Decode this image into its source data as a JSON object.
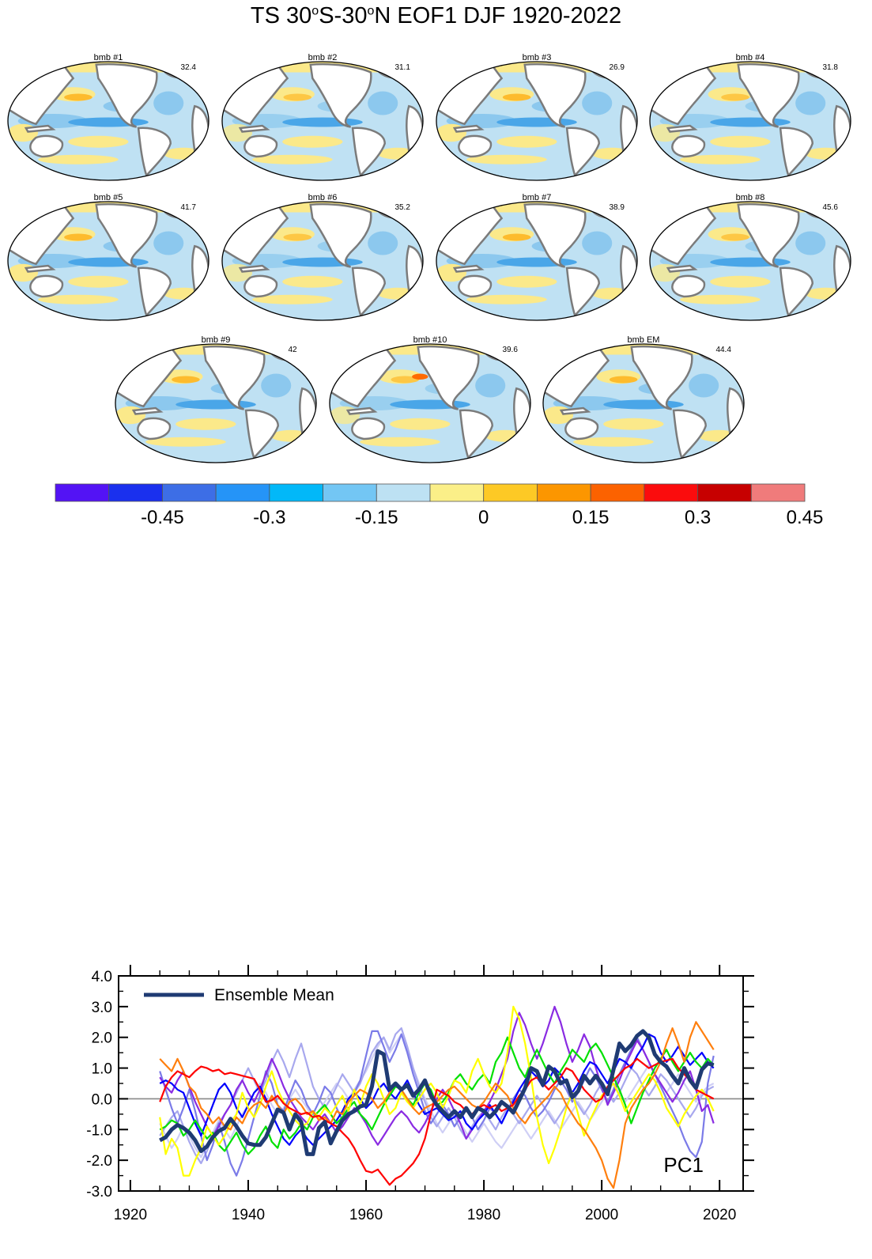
{
  "title": {
    "prefix": "TS 30",
    "sup1": "o",
    "mid": "S-30",
    "sup2": "o",
    "suffix": "N EOF1 DJF 1920-2022"
  },
  "colors": {
    "ocean_light": "#bfe1f3",
    "ocean_mid": "#8cc8ee",
    "ocean_deep": "#4aa6e8",
    "warm_light": "#fbe98a",
    "warm_mid": "#fdbb2d",
    "warm_deep": "#ff6a00",
    "land": "#ffffff",
    "coast": "#7b7b7b"
  },
  "maps": [
    {
      "label": "bmb #1",
      "value": "32.4"
    },
    {
      "label": "bmb #2",
      "value": "31.1"
    },
    {
      "label": "bmb #3",
      "value": "26.9"
    },
    {
      "label": "bmb #4",
      "value": "31.8"
    },
    {
      "label": "bmb #5",
      "value": "41.7"
    },
    {
      "label": "bmb #6",
      "value": "35.2"
    },
    {
      "label": "bmb #7",
      "value": "38.9"
    },
    {
      "label": "bmb #8",
      "value": "45.6"
    },
    {
      "label": "bmb #9",
      "value": "42"
    },
    {
      "label": "bmb #10",
      "value": "39.6"
    },
    {
      "label": "bmb EM",
      "value": "44.4"
    }
  ],
  "colorbar": {
    "colors": [
      "#5313f5",
      "#1a30ee",
      "#3d6ee6",
      "#2594f7",
      "#02b8f8",
      "#73c6f4",
      "#bde1f3",
      "#fbef88",
      "#fdc925",
      "#fc9600",
      "#fc6200",
      "#fb0c0d",
      "#c70000",
      "#f07b7b"
    ],
    "labels": [
      "-0.45",
      "-0.3",
      "-0.15",
      "0",
      "0.15",
      "0.3",
      "0.45"
    ]
  },
  "chart_data": {
    "type": "line",
    "xlim": [
      1918,
      2024
    ],
    "ylim": [
      -3.0,
      4.0
    ],
    "xticks": [
      "1920",
      "1940",
      "1960",
      "1980",
      "2000",
      "2020"
    ],
    "yticks": [
      "4.0",
      "3.0",
      "2.0",
      "1.0",
      "0.0",
      "-1.0",
      "-2.0",
      "-3.0"
    ],
    "annotation": "PC1",
    "legend": {
      "label": "Ensemble Mean",
      "placement": "top-left"
    },
    "x_start": 1925,
    "x_step": 1,
    "series": [
      {
        "name": "Ensemble Mean",
        "color": "#1f3b73",
        "width": 5,
        "values": [
          -1.35,
          -1.25,
          -1.0,
          -0.85,
          -0.95,
          -1.1,
          -1.35,
          -1.7,
          -1.55,
          -1.25,
          -1.05,
          -0.95,
          -0.65,
          -0.9,
          -1.2,
          -1.45,
          -1.5,
          -1.5,
          -1.25,
          -0.8,
          -0.35,
          -0.45,
          -1.0,
          -0.5,
          -0.75,
          -1.8,
          -1.8,
          -0.95,
          -0.75,
          -1.45,
          -1.05,
          -0.7,
          -0.5,
          -0.4,
          -0.25,
          -0.2,
          0.4,
          1.55,
          1.45,
          0.3,
          0.5,
          0.3,
          0.45,
          0.1,
          0.3,
          0.6,
          0.1,
          -0.2,
          -0.4,
          -0.6,
          -0.4,
          -0.6,
          -0.3,
          -0.6,
          -0.3,
          -0.4,
          -0.6,
          -0.4,
          -0.1,
          -0.25,
          -0.45,
          -0.05,
          0.35,
          1.0,
          0.9,
          0.45,
          1.05,
          0.9,
          0.5,
          0.6,
          0.05,
          0.25,
          0.75,
          0.5,
          0.75,
          0.5,
          0.15,
          0.95,
          1.8,
          1.55,
          1.75,
          2.05,
          2.2,
          2.0,
          1.45,
          1.2,
          1.05,
          0.75,
          0.5,
          1.0,
          0.6,
          0.35,
          0.95,
          1.15,
          1.1
        ]
      },
      {
        "name": "",
        "color": "#ff0000",
        "width": 2.2,
        "values": [
          -0.1,
          0.4,
          0.7,
          0.9,
          0.8,
          0.7,
          0.9,
          1.05,
          1.0,
          0.9,
          0.95,
          0.8,
          0.85,
          0.8,
          0.75,
          0.7,
          0.65,
          0.3,
          -0.1,
          -0.05,
          0.1,
          -0.15,
          -0.3,
          -0.4,
          -0.5,
          -0.45,
          -0.6,
          -0.55,
          -0.7,
          -0.8,
          -0.9,
          -1.1,
          -1.3,
          -1.6,
          -2.0,
          -2.35,
          -2.4,
          -2.3,
          -2.55,
          -2.8,
          -2.6,
          -2.5,
          -2.3,
          -2.1,
          -1.8,
          -1.3,
          -0.5,
          0.3,
          0.2,
          0.1,
          -0.1,
          -0.2,
          -0.4,
          -0.5,
          -0.3,
          -0.2,
          -0.3,
          -0.2,
          -0.4,
          -0.3,
          -0.2,
          0.1,
          0.3,
          0.6,
          0.7,
          0.5,
          0.3,
          0.5,
          0.7,
          1.0,
          0.9,
          0.6,
          0.3,
          0.1,
          -0.1,
          0.0,
          0.4,
          0.6,
          0.8,
          1.0,
          1.1,
          1.3,
          1.15,
          1.0,
          1.1,
          1.2,
          1.25,
          1.3,
          1.0,
          0.8,
          0.6,
          0.3,
          0.2,
          0.1,
          0.0
        ]
      },
      {
        "name": "",
        "color": "#ff7f0e",
        "width": 2.2,
        "values": [
          1.3,
          1.1,
          0.9,
          1.3,
          0.9,
          0.4,
          0.2,
          -0.3,
          -0.5,
          -0.8,
          -0.6,
          -0.9,
          -1.0,
          -0.6,
          -0.8,
          -0.4,
          -0.2,
          -0.1,
          -0.3,
          0.1,
          -0.2,
          -0.5,
          -0.1,
          0.0,
          -0.2,
          -0.5,
          -0.4,
          -0.7,
          -0.6,
          -0.8,
          -0.4,
          -0.5,
          -0.1,
          0.1,
          0.3,
          0.2,
          0.0,
          -0.3,
          -0.1,
          0.2,
          0.5,
          0.3,
          0.0,
          -0.3,
          -0.5,
          -0.3,
          -0.2,
          -0.1,
          0.1,
          0.3,
          0.4,
          0.2,
          0.0,
          -0.2,
          -0.3,
          -0.1,
          0.2,
          0.5,
          0.3,
          0.1,
          -0.3,
          -0.6,
          -0.8,
          -0.5,
          -0.3,
          -0.1,
          0.1,
          0.4,
          0.2,
          -0.2,
          -0.5,
          -0.8,
          -1.0,
          -1.3,
          -1.6,
          -2.0,
          -2.6,
          -2.9,
          -2.0,
          -0.8,
          -0.3,
          0.0,
          0.3,
          0.5,
          0.8,
          1.2,
          1.8,
          2.3,
          1.8,
          1.2,
          2.0,
          2.5,
          2.2,
          1.9,
          1.6
        ]
      },
      {
        "name": "",
        "color": "#ffff00",
        "width": 2.2,
        "values": [
          -0.6,
          -1.8,
          -1.3,
          -1.6,
          -2.5,
          -2.5,
          -2.0,
          -1.6,
          -0.9,
          -1.2,
          -1.5,
          -1.2,
          -0.8,
          -0.5,
          0.2,
          -0.3,
          -0.6,
          -0.2,
          0.4,
          0.9,
          0.3,
          -0.1,
          -0.4,
          -0.7,
          -0.9,
          -0.8,
          -0.4,
          -0.6,
          -0.3,
          -0.5,
          -0.2,
          0.1,
          -0.4,
          0.3,
          -0.2,
          0.4,
          0.8,
          0.5,
          0.0,
          -0.5,
          -0.3,
          0.2,
          -0.1,
          -0.3,
          0.0,
          0.3,
          0.5,
          0.2,
          -0.3,
          0.1,
          0.6,
          0.5,
          0.2,
          0.9,
          1.3,
          0.8,
          0.4,
          0.2,
          0.5,
          1.5,
          3.0,
          2.6,
          1.8,
          0.7,
          -0.6,
          -1.5,
          -2.1,
          -1.6,
          -1.0,
          -0.3,
          0.2,
          -0.5,
          -1.2,
          -0.7,
          -0.3,
          0.1,
          0.3,
          0.5,
          0.1,
          -0.4,
          -0.1,
          0.2,
          0.5,
          0.8,
          0.6,
          0.2,
          -0.3,
          -0.6,
          -0.9,
          -0.5,
          -0.2,
          0.1,
          0.3,
          0.0,
          -0.4
        ]
      },
      {
        "name": "",
        "color": "#00e000",
        "width": 2.2,
        "values": [
          -1.0,
          -0.9,
          -0.7,
          -0.8,
          -1.2,
          -1.0,
          -0.7,
          -1.0,
          -1.3,
          -1.1,
          -1.5,
          -1.7,
          -1.4,
          -1.1,
          -1.5,
          -1.8,
          -1.6,
          -1.2,
          -0.9,
          -1.4,
          -1.6,
          -1.0,
          -1.3,
          -1.1,
          -0.8,
          -1.0,
          -0.6,
          -0.4,
          -0.2,
          -0.5,
          -0.8,
          -0.6,
          -0.3,
          -0.1,
          -0.5,
          -0.7,
          -1.0,
          -0.6,
          -0.2,
          0.1,
          0.4,
          0.3,
          0.0,
          -0.2,
          0.2,
          0.5,
          0.3,
          -0.2,
          -0.1,
          0.2,
          0.6,
          0.8,
          0.5,
          0.3,
          0.6,
          0.8,
          0.5,
          1.2,
          1.5,
          2.0,
          1.5,
          1.0,
          0.7,
          1.2,
          1.6,
          1.2,
          0.8,
          0.5,
          0.9,
          1.2,
          1.6,
          1.4,
          1.2,
          1.6,
          1.8,
          1.5,
          1.1,
          0.7,
          0.3,
          -0.2,
          -0.8,
          -0.3,
          0.2,
          0.6,
          1.0,
          1.3,
          1.6,
          1.2,
          0.9,
          1.2,
          1.5,
          1.2,
          1.0,
          1.3,
          1.1
        ]
      },
      {
        "name": "",
        "color": "#0000ff",
        "width": 2.2,
        "values": [
          0.5,
          0.6,
          0.5,
          0.3,
          0.2,
          -0.3,
          -0.8,
          -1.2,
          -0.7,
          -0.2,
          0.3,
          0.5,
          0.2,
          -0.3,
          -0.6,
          -0.2,
          0.2,
          0.4,
          0.0,
          -0.5,
          -0.9,
          -1.3,
          -1.5,
          -1.2,
          -1.0,
          -1.3,
          -1.5,
          -1.3,
          -1.1,
          -0.9,
          -0.7,
          -0.4,
          0.0,
          0.2,
          0.0,
          -0.3,
          -0.1,
          0.3,
          0.5,
          0.2,
          0.0,
          0.3,
          0.6,
          0.2,
          -0.2,
          -0.5,
          -0.4,
          -0.3,
          -0.5,
          -0.7,
          -0.6,
          -0.4,
          -0.8,
          -1.0,
          -0.7,
          -0.5,
          -0.2,
          -0.5,
          -0.8,
          -0.4,
          -0.1,
          0.3,
          0.6,
          0.9,
          0.7,
          0.4,
          0.6,
          1.0,
          0.8,
          0.5,
          0.2,
          0.5,
          0.9,
          1.2,
          1.1,
          0.8,
          0.5,
          0.9,
          1.3,
          1.2,
          1.0,
          1.4,
          1.7,
          2.1,
          2.0,
          1.5,
          1.2,
          1.4,
          1.7,
          1.4,
          1.1,
          1.3,
          1.5,
          1.2,
          1.0
        ]
      },
      {
        "name": "",
        "color": "#8a2be2",
        "width": 2.2,
        "values": [
          0.7,
          0.4,
          0.2,
          0.6,
          0.9,
          0.4,
          -0.1,
          -0.5,
          -0.9,
          -1.2,
          -0.9,
          -0.5,
          -0.2,
          0.3,
          0.6,
          0.2,
          -0.1,
          0.3,
          0.8,
          1.3,
          0.9,
          0.4,
          0.0,
          -0.3,
          -0.6,
          -0.8,
          -1.0,
          -0.7,
          -0.5,
          -0.8,
          -1.1,
          -0.9,
          -0.6,
          -0.3,
          -0.5,
          -0.8,
          -1.2,
          -1.5,
          -1.2,
          -0.9,
          -0.6,
          -0.4,
          -0.6,
          -0.9,
          -1.1,
          -0.8,
          -0.4,
          0.0,
          0.3,
          0.0,
          -0.4,
          -0.8,
          -1.3,
          -1.0,
          -0.7,
          -0.4,
          -0.1,
          0.3,
          0.8,
          1.3,
          2.2,
          2.8,
          2.4,
          1.8,
          1.3,
          1.8,
          2.4,
          3.0,
          2.5,
          1.8,
          1.2,
          1.6,
          2.1,
          1.7,
          1.0,
          0.4,
          -0.2,
          0.2,
          0.6,
          1.1,
          1.5,
          1.9,
          1.6,
          1.2,
          0.8,
          0.5,
          0.2,
          -0.1,
          0.2,
          0.6,
          0.9,
          0.3,
          -0.4,
          -0.2,
          -0.8
        ]
      },
      {
        "name": "",
        "color": "#7b7be8",
        "width": 2.2,
        "values": [
          0.9,
          0.3,
          -0.3,
          -0.8,
          -0.3,
          0.3,
          -0.4,
          -1.2,
          -2.0,
          -1.5,
          -0.8,
          -1.4,
          -2.1,
          -2.5,
          -2.0,
          -1.3,
          -0.6,
          0.1,
          0.9,
          0.5,
          -0.2,
          -0.4,
          0.1,
          0.6,
          0.3,
          -0.2,
          -0.5,
          -0.1,
          0.4,
          0.2,
          -0.3,
          -0.7,
          -0.4,
          0.2,
          0.6,
          1.4,
          2.2,
          2.2,
          1.7,
          1.2,
          1.6,
          2.1,
          1.5,
          0.8,
          0.2,
          -0.4,
          -0.8,
          -0.5,
          -0.2,
          -0.5,
          -0.9,
          -0.6,
          -0.3,
          -0.6,
          -1.0,
          -0.7,
          -0.3,
          -0.5,
          -0.8,
          -0.4,
          0.0,
          0.3,
          0.1,
          -0.3,
          -0.6,
          -0.4,
          -0.1,
          0.3,
          0.6,
          0.3,
          -0.1,
          0.2,
          0.6,
          1.0,
          0.7,
          0.3,
          -0.1,
          0.3,
          0.8,
          1.2,
          1.6,
          2.0,
          1.6,
          1.2,
          0.8,
          0.4,
          0.0,
          -0.4,
          -0.8,
          -1.3,
          -1.7,
          -1.9,
          -1.4,
          0.5,
          1.4
        ]
      },
      {
        "name": "",
        "color": "#a8a8ee",
        "width": 2.2,
        "values": [
          -1.2,
          -0.9,
          -0.6,
          -0.4,
          -0.9,
          -1.4,
          -1.8,
          -2.1,
          -1.7,
          -1.2,
          -0.8,
          -0.5,
          -0.2,
          0.2,
          0.6,
          1.0,
          0.6,
          0.2,
          0.6,
          1.2,
          1.6,
          1.2,
          0.7,
          1.3,
          1.8,
          1.1,
          0.4,
          0.0,
          -0.3,
          0.0,
          0.4,
          0.8,
          0.5,
          0.2,
          0.5,
          1.0,
          1.5,
          1.8,
          2.0,
          1.6,
          2.1,
          2.3,
          1.7,
          1.0,
          0.4,
          -0.1,
          -0.6,
          -0.9,
          -0.6,
          -0.3,
          -0.6,
          -1.0,
          -1.3,
          -0.9,
          -0.6,
          -0.4,
          -0.7,
          -1.0,
          -0.6,
          -0.3,
          -0.5,
          -0.8,
          -0.5,
          -0.2,
          0.1,
          -0.2,
          -0.5,
          -0.8,
          -0.5,
          -0.2,
          0.1,
          -0.2,
          -0.5,
          -0.2,
          0.2,
          0.5,
          0.2,
          -0.1,
          0.2,
          0.6,
          1.0,
          0.8,
          0.4,
          0.1,
          0.4,
          0.8,
          0.6,
          0.3,
          0.0,
          -0.3,
          -0.6,
          -0.3,
          0.1,
          0.3,
          0.4
        ]
      },
      {
        "name": "",
        "color": "#cfcff5",
        "width": 2.2,
        "values": [
          -0.8,
          -1.2,
          -1.6,
          -1.3,
          -0.9,
          -1.2,
          -1.6,
          -1.9,
          -1.5,
          -1.1,
          -0.7,
          -1.0,
          -1.3,
          -0.9,
          -0.5,
          -0.2,
          0.2,
          0.5,
          0.2,
          -0.2,
          -0.5,
          -0.3,
          0.0,
          0.3,
          0.0,
          -0.3,
          -0.6,
          -0.4,
          -0.1,
          0.2,
          0.5,
          0.3,
          0.0,
          0.3,
          0.6,
          0.9,
          1.3,
          1.7,
          2.0,
          1.5,
          1.8,
          2.1,
          1.6,
          1.0,
          0.5,
          0.0,
          -0.4,
          -0.8,
          -1.1,
          -0.8,
          -0.5,
          -0.8,
          -1.1,
          -1.4,
          -1.1,
          -0.8,
          -1.1,
          -1.4,
          -1.6,
          -1.3,
          -1.0,
          -0.7,
          -1.0,
          -1.3,
          -1.0,
          -0.7,
          -0.4,
          -0.7,
          -1.0,
          -0.7,
          -0.4,
          -0.1,
          -0.4,
          -0.7,
          -0.4,
          -0.1,
          0.2,
          0.5,
          0.2,
          -0.1,
          0.2,
          0.5,
          0.8,
          1.1,
          0.8,
          0.5,
          0.2,
          0.5,
          0.8,
          0.5,
          0.2,
          -0.1,
          0.2,
          0.4,
          0.5
        ]
      }
    ]
  }
}
